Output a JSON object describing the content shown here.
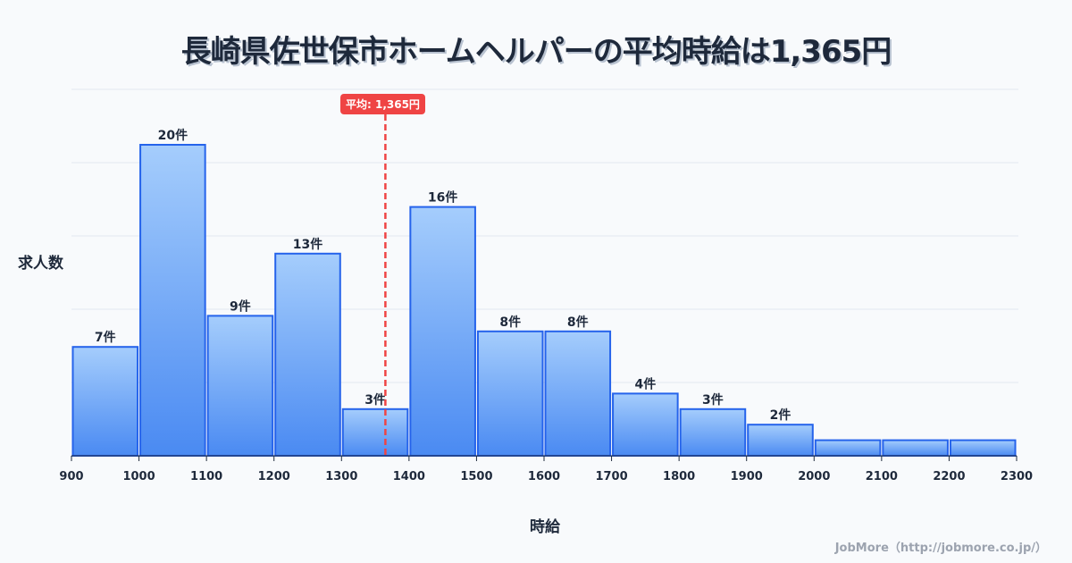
{
  "title": "長崎県佐世保市ホームヘルパーの平均時給は1,365円",
  "footer": "JobMore（http://jobmore.co.jp/）",
  "average_badge": "平均: 1,365円",
  "colors": {
    "bar_top": "#a5cdfc",
    "bar_bottom": "#4a8af2",
    "bar_stroke": "#2563eb",
    "avg_line": "#ef4444",
    "grid": "#e2e8f0",
    "text": "#1e293b"
  },
  "chart_data": {
    "type": "bar",
    "title": "長崎県佐世保市ホームヘルパーの平均時給は1,365円",
    "xlabel": "時給",
    "ylabel": "求人数",
    "bin_edges": [
      900,
      1000,
      1100,
      1200,
      1300,
      1400,
      1500,
      1600,
      1700,
      1800,
      1900,
      2000,
      2100,
      2200,
      2300
    ],
    "categories": [
      "900-1000",
      "1000-1100",
      "1100-1200",
      "1200-1300",
      "1300-1400",
      "1400-1500",
      "1500-1600",
      "1600-1700",
      "1700-1800",
      "1800-1900",
      "1900-2000",
      "2000-2100",
      "2100-2200",
      "2200-2300"
    ],
    "values": [
      7,
      20,
      9,
      13,
      3,
      16,
      8,
      8,
      4,
      3,
      2,
      1,
      1,
      1
    ],
    "value_labels": [
      "7件",
      "20件",
      "9件",
      "13件",
      "3件",
      "16件",
      "8件",
      "8件",
      "4件",
      "3件",
      "2件",
      "",
      "",
      ""
    ],
    "x_ticks": [
      "900",
      "1000",
      "1100",
      "1200",
      "1300",
      "1400",
      "1500",
      "1600",
      "1700",
      "1800",
      "1900",
      "2000",
      "2100",
      "2200",
      "2300"
    ],
    "average": 1365,
    "average_label": "平均: 1,365円",
    "xlim": [
      900,
      2300
    ],
    "ylim": [
      0,
      23.6
    ],
    "grid": true
  }
}
